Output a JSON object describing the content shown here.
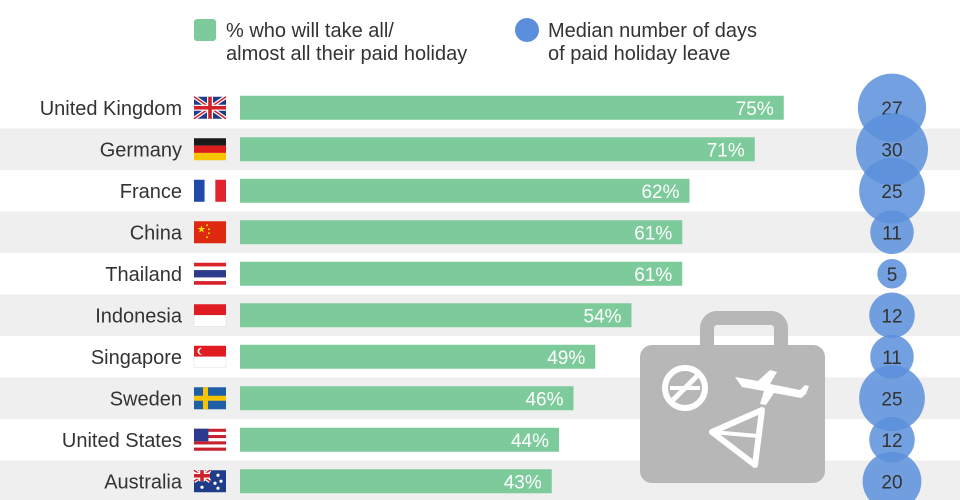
{
  "legend": {
    "bar_label_line1": "% who will take all/",
    "bar_label_line2": "almost all their paid holiday",
    "bubble_label_line1": "Median number of days",
    "bubble_label_line2": "of paid holiday leave"
  },
  "colors": {
    "bar": "#7dcb9b",
    "bubble": "#5b8fdb",
    "row_stripe": "#efefef",
    "text": "#333333",
    "suitcase": "#b7b7b7"
  },
  "chart_data": {
    "type": "bar",
    "orientation": "horizontal",
    "categories": [
      "United Kingdom",
      "Germany",
      "France",
      "China",
      "Thailand",
      "Indonesia",
      "Singapore",
      "Sweden",
      "United States",
      "Australia"
    ],
    "flags": [
      "uk-flag-icon",
      "germany-flag-icon",
      "france-flag-icon",
      "china-flag-icon",
      "thailand-flag-icon",
      "indonesia-flag-icon",
      "singapore-flag-icon",
      "sweden-flag-icon",
      "usa-flag-icon",
      "australia-flag-icon"
    ],
    "series": [
      {
        "name": "% who will take all/almost all their paid holiday",
        "values": [
          75,
          71,
          62,
          61,
          61,
          54,
          49,
          46,
          44,
          43
        ],
        "labels": [
          "75%",
          "71%",
          "62%",
          "61%",
          "61%",
          "54%",
          "49%",
          "46%",
          "44%",
          "43%"
        ]
      },
      {
        "name": "Median number of days of paid holiday leave",
        "values": [
          27,
          30,
          25,
          11,
          5,
          12,
          11,
          25,
          12,
          20
        ],
        "labels": [
          "27",
          "30",
          "25",
          "11",
          "5",
          "12",
          "11",
          "25",
          "12",
          "20"
        ]
      }
    ],
    "xlim": [
      0,
      100
    ],
    "grid": false,
    "legend_position": "top"
  }
}
